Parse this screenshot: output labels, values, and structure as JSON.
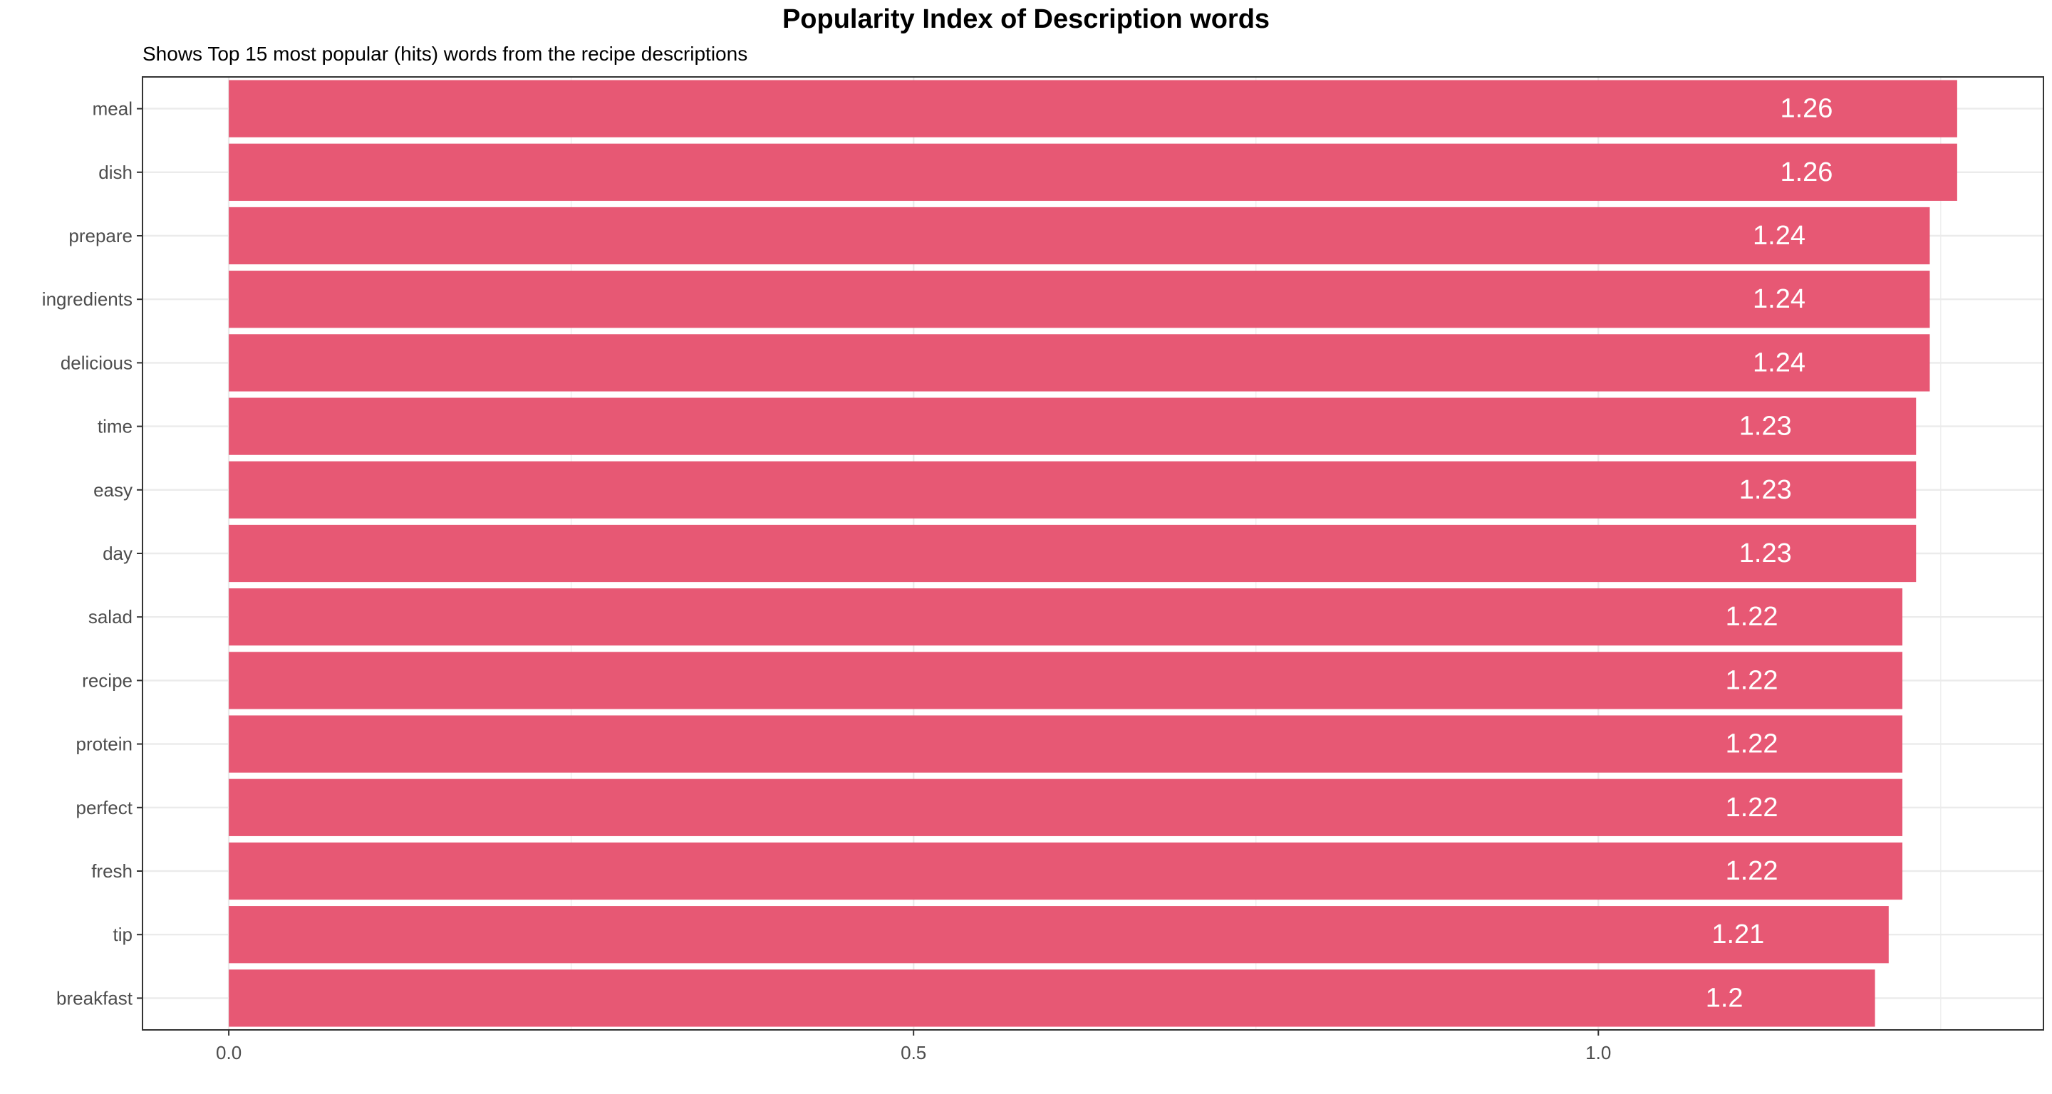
{
  "chart_data": {
    "type": "bar",
    "orientation": "horizontal",
    "title": "Popularity Index of Description words",
    "subtitle": "Shows Top 15 most popular (hits) words from the recipe descriptions",
    "xlabel": "",
    "ylabel": "",
    "categories": [
      "meal",
      "dish",
      "prepare",
      "ingredients",
      "delicious",
      "time",
      "easy",
      "day",
      "salad",
      "recipe",
      "protein",
      "perfect",
      "fresh",
      "tip",
      "breakfast"
    ],
    "values": [
      1.262,
      1.262,
      1.242,
      1.242,
      1.242,
      1.232,
      1.232,
      1.232,
      1.222,
      1.222,
      1.222,
      1.222,
      1.222,
      1.212,
      1.202
    ],
    "data_labels": [
      "1.26",
      "1.26",
      "1.24",
      "1.24",
      "1.24",
      "1.23",
      "1.23",
      "1.23",
      "1.22",
      "1.22",
      "1.22",
      "1.22",
      "1.22",
      "1.21",
      "1.2"
    ],
    "x_ticks": [
      0.0,
      0.5,
      1.0
    ],
    "x_tick_labels": [
      "0.0",
      "0.5",
      "1.0"
    ],
    "xlim": [
      -0.063,
      1.325
    ],
    "grid": true,
    "legend": "none",
    "colors": {
      "bar": "#E75874",
      "grid": "#EBEBEB",
      "panel_border": "#333333",
      "tick_label": "#4D4D4D",
      "data_label": "#FFFFFF"
    }
  }
}
